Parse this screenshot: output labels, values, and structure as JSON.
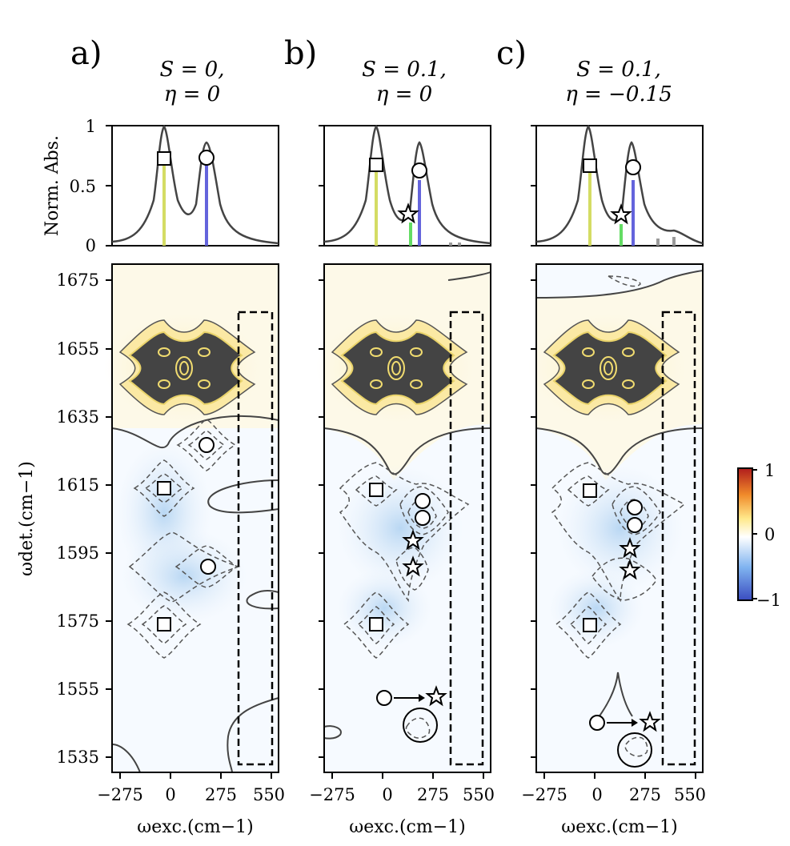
{
  "chart_data": [
    {
      "type": "line",
      "panel": "a)",
      "params": [
        "S = 0,",
        "η = 0"
      ],
      "spectrum": {
        "ylabel": "Norm. Abs.",
        "yticks": [
          "0",
          "0.5",
          "1"
        ],
        "peaks": [
          {
            "center": -55,
            "width": 40,
            "amp": 1.0
          },
          {
            "center": 215,
            "width": 45,
            "amp": 0.88
          }
        ],
        "sticks": [
          {
            "x": -55,
            "h": 0.71,
            "color": "#d4dc64",
            "marker": "square"
          },
          {
            "x": 215,
            "h": 0.73,
            "color": "#6464dc",
            "marker": "circle"
          }
        ]
      },
      "map2d": {
        "yticks": [
          "1675",
          "1655",
          "1635",
          "1615",
          "1595",
          "1575",
          "1555",
          "1535"
        ],
        "xticks": [
          "−275",
          "0",
          "275",
          "550"
        ],
        "xlabel": "ωexc.(cm−1)",
        "ylabel": "ωdet.(cm−1)",
        "markers": [
          {
            "type": "circle",
            "x": 215,
            "y": 1626
          },
          {
            "type": "square",
            "x": -55,
            "y": 1614
          },
          {
            "type": "circle",
            "x": 215,
            "y": 1591
          },
          {
            "type": "square",
            "x": -55,
            "y": 1574
          }
        ]
      }
    },
    {
      "type": "line",
      "panel": "b)",
      "params": [
        "S = 0.1,",
        "η = 0"
      ],
      "spectrum": {
        "yticks": [
          "0",
          "0.5",
          "1"
        ],
        "peaks": [
          {
            "center": -55,
            "width": 40,
            "amp": 1.0
          },
          {
            "center": 215,
            "width": 45,
            "amp": 0.88
          }
        ],
        "sticks": [
          {
            "x": -55,
            "h": 0.68,
            "color": "#d4dc64",
            "marker": "square"
          },
          {
            "x": 150,
            "h": 0.18,
            "color": "#64dc64",
            "marker": "star"
          },
          {
            "x": 185,
            "h": 0.55,
            "color": "#6464dc",
            "marker": "circle"
          },
          {
            "x": 410,
            "h": 0.02,
            "color": "#9a9a9a",
            "marker": "none"
          },
          {
            "x": 440,
            "h": 0.02,
            "color": "#9a9a9a",
            "marker": "none"
          }
        ]
      },
      "map2d": {
        "yticks": [
          "1675",
          "1655",
          "1635",
          "1615",
          "1595",
          "1575",
          "1555",
          "1535"
        ],
        "xticks": [
          "−275",
          "0",
          "275",
          "550"
        ],
        "xlabel": "ωexc.(cm−1)",
        "markers": [
          {
            "type": "square",
            "x": -55,
            "y": 1614
          },
          {
            "type": "circle",
            "x": 185,
            "y": 1609
          },
          {
            "type": "circle",
            "x": 185,
            "y": 1605
          },
          {
            "type": "star",
            "x": 150,
            "y": 1599
          },
          {
            "type": "star",
            "x": 150,
            "y": 1591
          },
          {
            "type": "square",
            "x": -55,
            "y": 1574
          }
        ]
      }
    },
    {
      "type": "line",
      "panel": "c)",
      "params": [
        "S = 0.1,",
        "η = −0.15"
      ],
      "spectrum": {
        "yticks": [
          "0",
          "0.5",
          "1"
        ],
        "peaks": [
          {
            "center": -55,
            "width": 40,
            "amp": 1.0
          },
          {
            "center": 215,
            "width": 45,
            "amp": 0.88
          }
        ],
        "sticks": [
          {
            "x": -55,
            "h": 0.66,
            "color": "#d4dc64",
            "marker": "square"
          },
          {
            "x": 150,
            "h": 0.17,
            "color": "#64dc64",
            "marker": "star"
          },
          {
            "x": 185,
            "h": 0.55,
            "color": "#6464dc",
            "marker": "circle"
          },
          {
            "x": 410,
            "h": 0.04,
            "color": "#9a9a9a",
            "marker": "none"
          },
          {
            "x": 450,
            "h": 0.06,
            "color": "#9a9a9a",
            "marker": "none"
          }
        ]
      },
      "map2d": {
        "yticks": [
          "1675",
          "1655",
          "1635",
          "1615",
          "1595",
          "1575",
          "1555",
          "1535"
        ],
        "xticks": [
          "−275",
          "0",
          "275",
          "550"
        ],
        "xlabel": "ωexc.(cm−1)",
        "markers": [
          {
            "type": "square",
            "x": -55,
            "y": 1614
          },
          {
            "type": "circle",
            "x": 185,
            "y": 1608
          },
          {
            "type": "circle",
            "x": 185,
            "y": 1603
          },
          {
            "type": "star",
            "x": 150,
            "y": 1597
          },
          {
            "type": "star",
            "x": 150,
            "y": 1590
          },
          {
            "type": "square",
            "x": -55,
            "y": 1574
          }
        ]
      }
    }
  ],
  "colorbar": {
    "ticks": [
      "1",
      "0",
      "−1"
    ],
    "range": [
      -1,
      1
    ]
  },
  "colors": {
    "positive_fill": "#fdf7df",
    "negative_fill": "#e9f2fb",
    "saturated": "#444444"
  }
}
